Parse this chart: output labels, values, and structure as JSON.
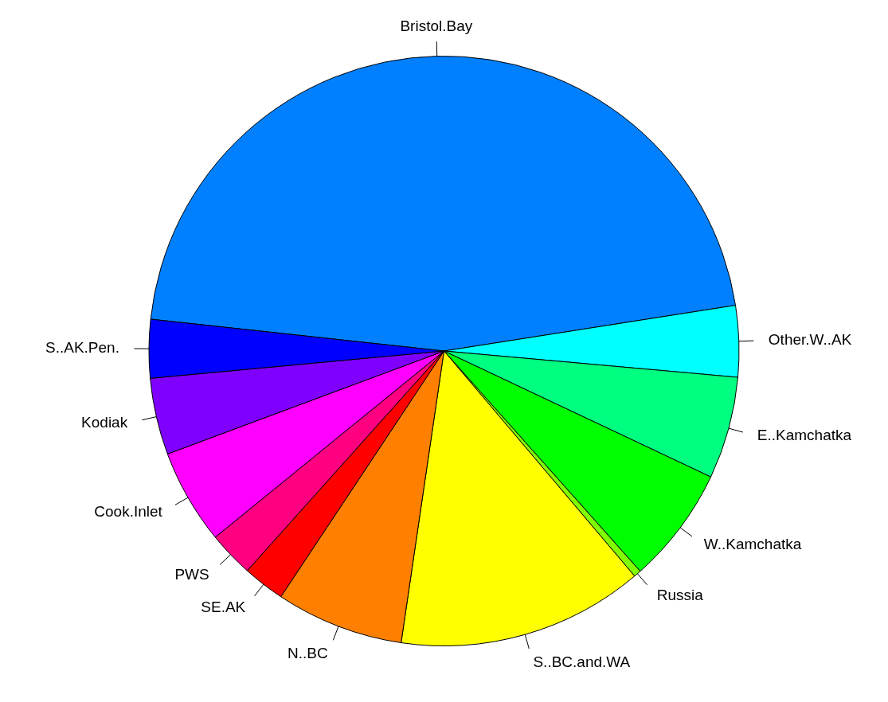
{
  "chart_data": {
    "type": "pie",
    "categories": [
      "Bristol.Bay",
      "Other.W..AK",
      "E..Kamchatka",
      "W..Kamchatka",
      "Russia",
      "S..BC.and.WA",
      "N..BC",
      "SE.AK",
      "PWS",
      "Cook.Inlet",
      "Kodiak",
      "S..AK.Pen."
    ],
    "values": [
      45.8,
      3.9,
      5.6,
      6.4,
      0.4,
      13.5,
      7.0,
      2.3,
      2.5,
      5.2,
      4.2,
      3.2
    ],
    "colors": [
      "#0080ff",
      "#00ffff",
      "#00ff80",
      "#00ff00",
      "#80ff00",
      "#ffff00",
      "#ff8000",
      "#ff0000",
      "#ff0080",
      "#ff00ff",
      "#8000ff",
      "#0000ff"
    ],
    "legend": false
  }
}
